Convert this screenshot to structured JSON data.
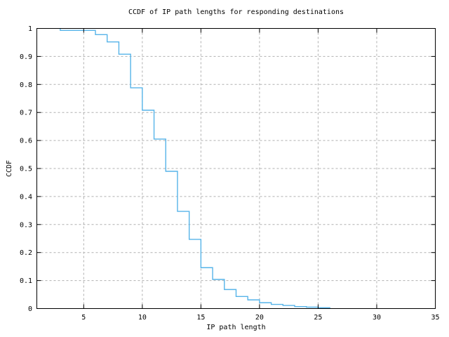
{
  "chart_data": {
    "type": "line",
    "subtype": "ccdf-step-function",
    "title": "CCDF of IP path lengths for responding destinations",
    "xlabel": "IP path length",
    "ylabel": "CCDF",
    "xlim": [
      1,
      35
    ],
    "ylim": [
      0,
      1
    ],
    "grid": "dashed",
    "legend": "none",
    "line_color": "#56B4E9",
    "grid_color": "#B0B0B0",
    "axis_color": "#000000",
    "x_ticks": [
      {
        "value": 5,
        "label": "5"
      },
      {
        "value": 10,
        "label": "10"
      },
      {
        "value": 15,
        "label": "15"
      },
      {
        "value": 20,
        "label": "20"
      },
      {
        "value": 25,
        "label": "25"
      },
      {
        "value": 30,
        "label": "30"
      },
      {
        "value": 35,
        "label": "35"
      }
    ],
    "y_ticks": [
      {
        "value": 0,
        "label": "0"
      },
      {
        "value": 0.1,
        "label": "0.1"
      },
      {
        "value": 0.2,
        "label": "0.2"
      },
      {
        "value": 0.3,
        "label": "0.3"
      },
      {
        "value": 0.4,
        "label": "0.4"
      },
      {
        "value": 0.5,
        "label": "0.5"
      },
      {
        "value": 0.6,
        "label": "0.6"
      },
      {
        "value": 0.7,
        "label": "0.7"
      },
      {
        "value": 0.8,
        "label": "0.8"
      },
      {
        "value": 0.9,
        "label": "0.9"
      },
      {
        "value": 1,
        "label": "1"
      }
    ],
    "start": {
      "x": 3,
      "ccdf": 1.0
    },
    "points": [
      {
        "x": 3,
        "ccdf": 0.993
      },
      {
        "x": 4,
        "ccdf": 0.993
      },
      {
        "x": 5,
        "ccdf": 0.993
      },
      {
        "x": 6,
        "ccdf": 0.978
      },
      {
        "x": 7,
        "ccdf": 0.952
      },
      {
        "x": 8,
        "ccdf": 0.908
      },
      {
        "x": 9,
        "ccdf": 0.788
      },
      {
        "x": 10,
        "ccdf": 0.708
      },
      {
        "x": 11,
        "ccdf": 0.605
      },
      {
        "x": 12,
        "ccdf": 0.49
      },
      {
        "x": 13,
        "ccdf": 0.347
      },
      {
        "x": 14,
        "ccdf": 0.247
      },
      {
        "x": 15,
        "ccdf": 0.146
      },
      {
        "x": 16,
        "ccdf": 0.104
      },
      {
        "x": 17,
        "ccdf": 0.068
      },
      {
        "x": 18,
        "ccdf": 0.043
      },
      {
        "x": 19,
        "ccdf": 0.031
      },
      {
        "x": 20,
        "ccdf": 0.021
      },
      {
        "x": 21,
        "ccdf": 0.015
      },
      {
        "x": 22,
        "ccdf": 0.011
      },
      {
        "x": 23,
        "ccdf": 0.007
      },
      {
        "x": 24,
        "ccdf": 0.005
      },
      {
        "x": 25,
        "ccdf": 0.003
      },
      {
        "x": 26,
        "ccdf": 0.001
      }
    ]
  }
}
